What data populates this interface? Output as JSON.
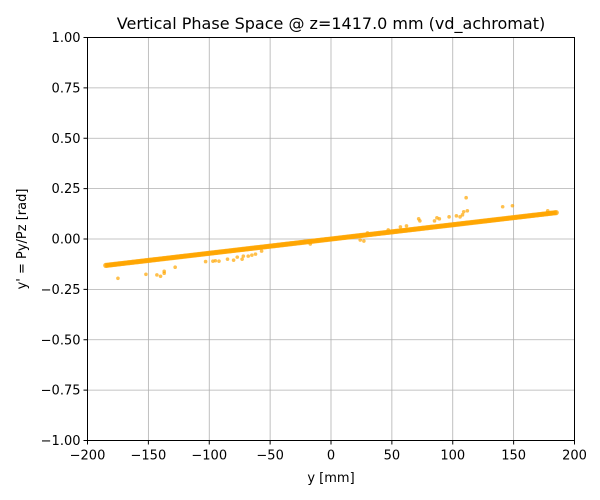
{
  "chart_data": {
    "type": "scatter",
    "title": "Vertical Phase Space @ z=1417.0 mm (vd_achromat)",
    "xlabel": "y [mm]",
    "ylabel": "y' = Py/Pz [rad]",
    "xlim": [
      -200,
      200
    ],
    "ylim": [
      -1.0,
      1.0
    ],
    "x_ticks": [
      -200,
      -150,
      -100,
      -50,
      0,
      50,
      100,
      150,
      200
    ],
    "x_tick_labels": [
      "−200",
      "−150",
      "−100",
      "−50",
      "0",
      "50",
      "100",
      "150",
      "200"
    ],
    "y_ticks": [
      -1.0,
      -0.75,
      -0.5,
      -0.25,
      0.0,
      0.25,
      0.5,
      0.75,
      1.0
    ],
    "y_tick_labels": [
      "−1.00",
      "−0.75",
      "−0.50",
      "−0.25",
      "0.00",
      "0.25",
      "0.50",
      "0.75",
      "1.00"
    ],
    "grid": true,
    "point_color": "#ffa500",
    "series": [
      {
        "band": [
          [
            -185,
            -0.131
          ],
          [
            185,
            0.131
          ]
        ],
        "outliers": [
          [
            -175,
            -0.195
          ],
          [
            -152,
            -0.175
          ],
          [
            -143,
            -0.178
          ],
          [
            -140,
            -0.185
          ],
          [
            -137,
            -0.17
          ],
          [
            -137,
            -0.16
          ],
          [
            -128,
            -0.14
          ],
          [
            -103,
            -0.112
          ],
          [
            -97,
            -0.11
          ],
          [
            -95,
            -0.108
          ],
          [
            -92,
            -0.11
          ],
          [
            -85,
            -0.1
          ],
          [
            -80,
            -0.105
          ],
          [
            -77,
            -0.09
          ],
          [
            -73,
            -0.1
          ],
          [
            -72,
            -0.085
          ],
          [
            -68,
            -0.085
          ],
          [
            -65,
            -0.08
          ],
          [
            -62,
            -0.075
          ],
          [
            -57,
            -0.06
          ],
          [
            -42,
            -0.03
          ],
          [
            -22,
            -0.015
          ],
          [
            -17,
            -0.025
          ],
          [
            24,
            -0.005
          ],
          [
            27,
            -0.01
          ],
          [
            30,
            0.03
          ],
          [
            47,
            0.045
          ],
          [
            57,
            0.06
          ],
          [
            62,
            0.065
          ],
          [
            72,
            0.1
          ],
          [
            73,
            0.09
          ],
          [
            85,
            0.09
          ],
          [
            87,
            0.105
          ],
          [
            89,
            0.1
          ],
          [
            97,
            0.11
          ],
          [
            103,
            0.115
          ],
          [
            106,
            0.11
          ],
          [
            108,
            0.12
          ],
          [
            109,
            0.135
          ],
          [
            111,
            0.205
          ],
          [
            112,
            0.14
          ],
          [
            141,
            0.16
          ],
          [
            149,
            0.165
          ],
          [
            178,
            0.14
          ]
        ]
      }
    ]
  }
}
